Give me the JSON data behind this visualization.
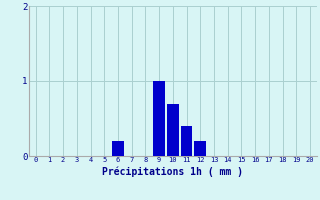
{
  "categories": [
    0,
    1,
    2,
    3,
    4,
    5,
    6,
    7,
    8,
    9,
    10,
    11,
    12,
    13,
    14,
    15,
    16,
    17,
    18,
    19,
    20
  ],
  "values": [
    0,
    0,
    0,
    0,
    0,
    0,
    0.2,
    0,
    0,
    1.0,
    0.7,
    0.4,
    0.2,
    0,
    0,
    0,
    0,
    0,
    0,
    0,
    0
  ],
  "bar_color": "#0000cc",
  "background_color": "#d8f5f5",
  "grid_color": "#aacfcf",
  "xlabel": "Précipitations 1h ( mm )",
  "xlabel_color": "#00008b",
  "tick_color": "#00008b",
  "ylim": [
    0,
    2
  ],
  "yticks": [
    0,
    1,
    2
  ],
  "xlim": [
    -0.5,
    20.5
  ],
  "bar_width": 0.85
}
